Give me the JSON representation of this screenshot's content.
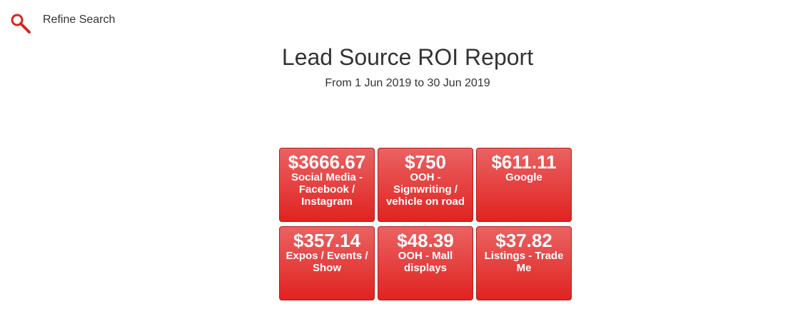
{
  "header": {
    "link": "Refine Search"
  },
  "report": {
    "title": "Lead Source ROI Report",
    "subtitle": "From 1 Jun 2019 to 30 Jun 2019"
  },
  "tiles": [
    {
      "value": "$3666.67",
      "label": "Social Media - Facebook / Instagram"
    },
    {
      "value": "$750",
      "label": "OOH - Signwriting / vehicle on road"
    },
    {
      "value": "$611.11",
      "label": "Google"
    },
    {
      "value": "$357.14",
      "label": "Expos / Events / Show"
    },
    {
      "value": "$48.39",
      "label": "OOH - Mall displays"
    },
    {
      "value": "$37.82",
      "label": "Listings - Trade Me"
    }
  ]
}
